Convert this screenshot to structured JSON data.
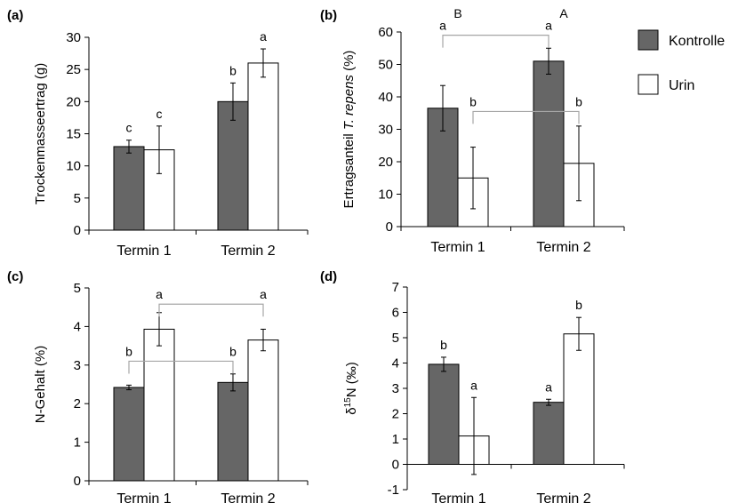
{
  "legend": {
    "kontrolle": "Kontrolle",
    "urin": "Urin"
  },
  "colors": {
    "kontrolle": "#666666",
    "urin": "#ffffff",
    "bracket": "#a6a6a6",
    "axis": "#000000"
  },
  "chart_data": [
    {
      "panel": "(a)",
      "type": "bar",
      "categories": [
        "Termin 1",
        "Termin 2"
      ],
      "ylabel": "Trockenmasseertrag (g)",
      "ylim": [
        0,
        30
      ],
      "yticks": [
        0,
        5,
        10,
        15,
        20,
        25,
        30
      ],
      "series": [
        {
          "name": "Kontrolle",
          "values": [
            13.0,
            20.0
          ],
          "errors": [
            1.0,
            2.9
          ],
          "letters": [
            "c",
            "b"
          ]
        },
        {
          "name": "Urin",
          "values": [
            12.5,
            26.0
          ],
          "errors": [
            3.7,
            2.2
          ],
          "letters": [
            "c",
            "a"
          ]
        }
      ],
      "top_letters": [],
      "brackets": []
    },
    {
      "panel": "(b)",
      "type": "bar",
      "categories": [
        "Termin 1",
        "Termin 2"
      ],
      "ylabel_prefix": "Ertragsanteil ",
      "ylabel_italic": "T. repens",
      "ylabel_suffix": " (%)",
      "ylim": [
        0,
        60
      ],
      "yticks": [
        0,
        10,
        20,
        30,
        40,
        50,
        60
      ],
      "series": [
        {
          "name": "Kontrolle",
          "values": [
            36.5,
            51.0
          ],
          "errors": [
            7.0,
            4.0
          ],
          "letters": [
            "",
            ""
          ]
        },
        {
          "name": "Urin",
          "values": [
            15.0,
            19.5
          ],
          "errors": [
            9.5,
            11.5
          ],
          "letters": [
            "",
            ""
          ]
        }
      ],
      "top_letters": [
        "B",
        "A"
      ],
      "brackets": [
        {
          "series": 0,
          "value": 59.0,
          "letters": [
            "a",
            "a"
          ]
        },
        {
          "series": 1,
          "value": 35.5,
          "letters": [
            "b",
            "b"
          ]
        }
      ]
    },
    {
      "panel": "(c)",
      "type": "bar",
      "categories": [
        "Termin 1",
        "Termin 2"
      ],
      "ylabel": "N-Gehalt (%)",
      "ylim": [
        0,
        5
      ],
      "yticks": [
        0,
        1,
        2,
        3,
        4,
        5
      ],
      "series": [
        {
          "name": "Kontrolle",
          "values": [
            2.42,
            2.55
          ],
          "errors": [
            0.06,
            0.22
          ],
          "letters": [
            "",
            ""
          ]
        },
        {
          "name": "Urin",
          "values": [
            3.93,
            3.65
          ],
          "errors": [
            0.43,
            0.28
          ],
          "letters": [
            "",
            ""
          ]
        }
      ],
      "top_letters": [],
      "brackets": [
        {
          "series": 1,
          "value": 4.58,
          "letters": [
            "a",
            "a"
          ]
        },
        {
          "series": 0,
          "value": 3.1,
          "letters": [
            "b",
            "b"
          ]
        }
      ]
    },
    {
      "panel": "(d)",
      "type": "bar",
      "categories": [
        "Termin 1",
        "Termin 2"
      ],
      "ylabel_prefix": "δ",
      "ylabel_sup": "15",
      "ylabel_suffix": "N (‰)",
      "ylim": [
        -1,
        7
      ],
      "yticks": [
        -1,
        0,
        1,
        2,
        3,
        4,
        5,
        6,
        7
      ],
      "series": [
        {
          "name": "Kontrolle",
          "values": [
            3.95,
            2.45
          ],
          "errors": [
            0.28,
            0.12
          ],
          "letters": [
            "b",
            "a"
          ]
        },
        {
          "name": "Urin",
          "values": [
            1.12,
            5.15
          ],
          "errors": [
            1.52,
            0.65
          ],
          "letters": [
            "a",
            "b"
          ]
        }
      ],
      "top_letters": [],
      "brackets": []
    }
  ]
}
